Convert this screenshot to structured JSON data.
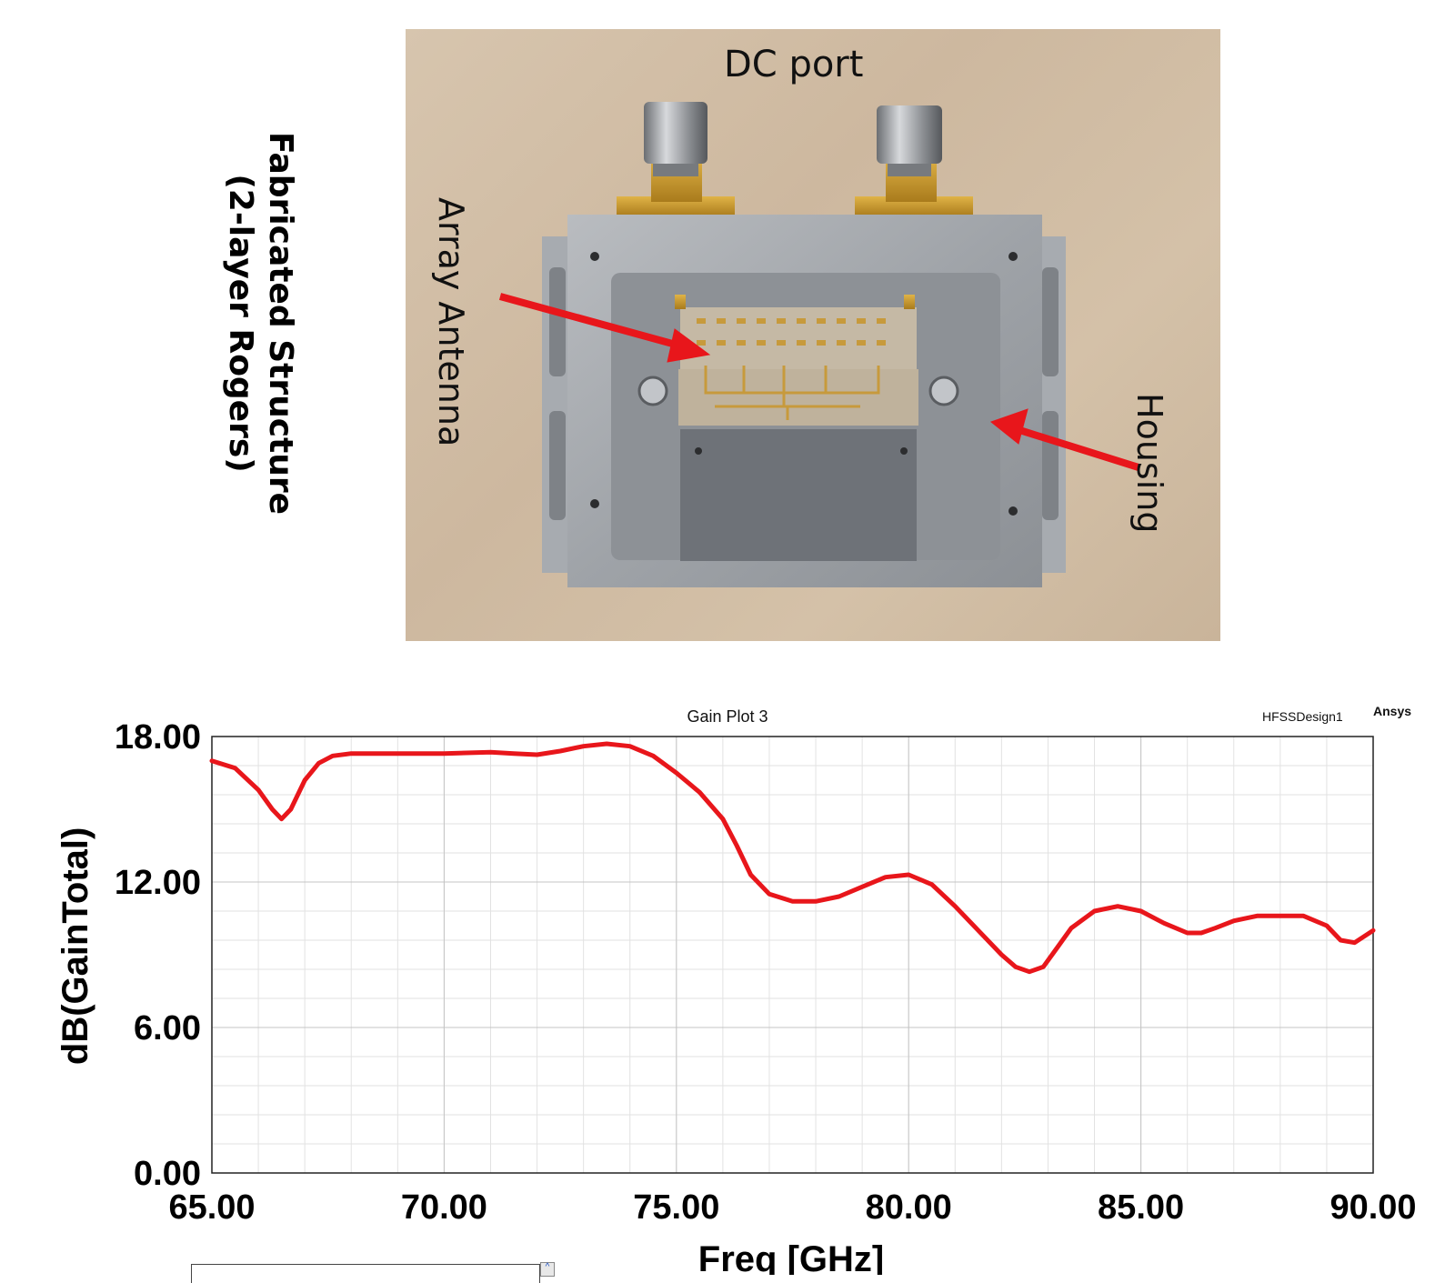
{
  "figure": {
    "side_label_line1": "Fabricated Structure",
    "side_label_line2": "(2-layer Rogers)"
  },
  "photo": {
    "labels": {
      "dc_port": "DC port",
      "array_antenna": "Array Antenna",
      "housing": "Housing"
    },
    "arrow_color": "#e8161b"
  },
  "chart_data": {
    "type": "line",
    "title": "Gain Plot 3",
    "design_label": "HFSSDesign1",
    "brand_label": "Ansys",
    "xlabel": "Freq [GHz]",
    "ylabel": "dB(GainTotal)",
    "xlim": [
      65.0,
      90.0
    ],
    "ylim": [
      0.0,
      18.0
    ],
    "xticks": [
      "65.00",
      "70.00",
      "75.00",
      "80.00",
      "85.00",
      "90.00"
    ],
    "yticks": [
      "0.00",
      "6.00",
      "12.00",
      "18.00"
    ],
    "grid": true,
    "series": [
      {
        "color": "#e8161b",
        "x": [
          65.0,
          65.5,
          66.0,
          66.3,
          66.5,
          66.7,
          67.0,
          67.3,
          67.6,
          68.0,
          69.0,
          70.0,
          71.0,
          71.5,
          72.0,
          72.5,
          73.0,
          73.5,
          74.0,
          74.5,
          75.0,
          75.5,
          76.0,
          76.3,
          76.6,
          77.0,
          77.5,
          78.0,
          78.5,
          79.0,
          79.5,
          80.0,
          80.5,
          81.0,
          81.5,
          82.0,
          82.3,
          82.6,
          82.9,
          83.2,
          83.5,
          84.0,
          84.5,
          85.0,
          85.5,
          86.0,
          86.3,
          86.6,
          87.0,
          87.5,
          88.0,
          88.5,
          89.0,
          89.3,
          89.6,
          90.0
        ],
        "y": [
          17.0,
          16.7,
          15.8,
          15.0,
          14.6,
          15.0,
          16.2,
          16.9,
          17.2,
          17.3,
          17.3,
          17.3,
          17.35,
          17.3,
          17.25,
          17.4,
          17.6,
          17.7,
          17.6,
          17.2,
          16.5,
          15.7,
          14.6,
          13.5,
          12.3,
          11.5,
          11.2,
          11.2,
          11.4,
          11.8,
          12.2,
          12.3,
          11.9,
          11.0,
          10.0,
          9.0,
          8.5,
          8.3,
          8.5,
          9.3,
          10.1,
          10.8,
          11.0,
          10.8,
          10.3,
          9.9,
          9.9,
          10.1,
          10.4,
          10.6,
          10.6,
          10.6,
          10.2,
          9.6,
          9.5,
          10.0
        ]
      }
    ]
  }
}
